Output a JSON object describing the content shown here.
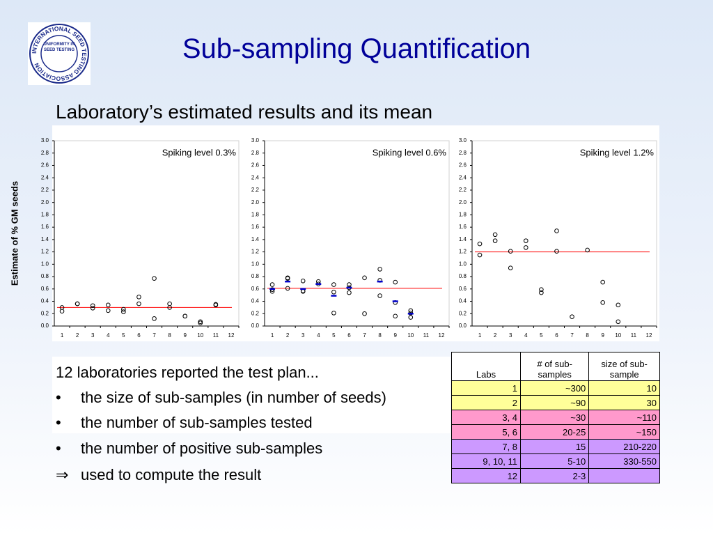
{
  "slide": {
    "title": "Sub-sampling Quantification",
    "subtitle": "Laboratory’s estimated results and its mean",
    "logo": {
      "ring": "INTERNATIONAL SEED TESTING ASSOCIATION",
      "center": "UNIFORMITY IN SEED TESTING"
    },
    "y_axis_label": "Estimate of % GM seeds",
    "intro": "12 laboratories reported the test plan...",
    "items": [
      {
        "marker": "•",
        "text": "the size of sub-samples (in number of seeds)"
      },
      {
        "marker": "•",
        "text": "the number of sub-samples tested"
      },
      {
        "marker": "•",
        "text": "the number of positive sub-samples"
      },
      {
        "marker": "⇒",
        "text": "used to compute the result"
      }
    ],
    "table": {
      "header": [
        "Labs",
        "# of sub-samples",
        "size of sub-sample"
      ],
      "rows": [
        {
          "color": "#ffff99",
          "cells": [
            "1",
            "~300",
            "10"
          ]
        },
        {
          "color": "#ffff99",
          "cells": [
            "2",
            "~90",
            "30"
          ]
        },
        {
          "color": "#ff99cc",
          "cells": [
            "3, 4",
            "~30",
            "~110"
          ]
        },
        {
          "color": "#ff99cc",
          "cells": [
            "5, 6",
            "20-25",
            "~150"
          ]
        },
        {
          "color": "#cc99ff",
          "cells": [
            "7, 8",
            "15",
            "210-220"
          ]
        },
        {
          "color": "#cc99ff",
          "cells": [
            "9, 10, 11",
            "5-10",
            "330-550"
          ]
        },
        {
          "color": "#cc99ff",
          "cells": [
            "12",
            "2-3",
            null
          ]
        }
      ]
    }
  },
  "chart_data": [
    {
      "type": "scatter",
      "annotation": "Spiking level 0.3%",
      "xlim": [
        0.5,
        12.5
      ],
      "xticks": [
        1,
        2,
        3,
        4,
        5,
        6,
        7,
        8,
        9,
        10,
        11,
        12
      ],
      "ylim": [
        0,
        3
      ],
      "yticks": [
        {
          "value": 0,
          "label": "0.0"
        },
        0.2,
        0.4,
        0.6,
        0.8,
        {
          "value": 1,
          "label": "1.0"
        },
        1.2,
        1.4,
        1.6,
        1.8,
        {
          "value": 2,
          "label": "2.0"
        },
        2.2,
        2.4,
        2.6,
        2.8,
        {
          "value": 3,
          "label": "3.0"
        }
      ],
      "series": [
        {
          "color": "#000000",
          "marker": "circle",
          "x": [
            1,
            1,
            2,
            2,
            3,
            3,
            4,
            4,
            5,
            5,
            6,
            6,
            7,
            7,
            8,
            8,
            9,
            9,
            10,
            10,
            11,
            11
          ],
          "values": [
            0.3,
            0.24,
            0.36,
            0.36,
            0.33,
            0.29,
            0.34,
            0.25,
            0.27,
            0.23,
            0.47,
            0.36,
            0.77,
            0.12,
            0.36,
            0.3,
            0.16,
            0.16,
            0.07,
            0.05,
            0.34,
            0.35
          ]
        }
      ],
      "mean": {
        "value": 0.3,
        "color": "#ff0000"
      }
    },
    {
      "type": "scatter",
      "annotation": "Spiking level 0.6%",
      "xlim": [
        0.5,
        12.5
      ],
      "xticks": [
        1,
        2,
        3,
        4,
        5,
        6,
        7,
        8,
        9,
        10,
        11,
        12
      ],
      "ylim": [
        0,
        3
      ],
      "yticks": [
        {
          "value": 0,
          "label": "0.0"
        },
        0.2,
        0.4,
        0.6,
        0.8,
        {
          "value": 1,
          "label": "1.0"
        },
        1.2,
        1.4,
        1.6,
        1.8,
        {
          "value": 2,
          "label": "2.0"
        },
        2.2,
        2.4,
        2.6,
        2.8,
        {
          "value": 3,
          "label": "3.0"
        }
      ],
      "series": [
        {
          "color": "#000000",
          "marker": "circle",
          "x": [
            1,
            1,
            1,
            2,
            2,
            2,
            3,
            3,
            3,
            4,
            4,
            5,
            5,
            5,
            6,
            6,
            6,
            7,
            7,
            8,
            8,
            8,
            9,
            9,
            9,
            10,
            10,
            10
          ],
          "values": [
            0.67,
            0.59,
            0.56,
            0.78,
            0.77,
            0.61,
            0.73,
            0.57,
            0.56,
            0.72,
            0.68,
            0.67,
            0.55,
            0.21,
            0.67,
            0.62,
            0.54,
            0.78,
            0.2,
            0.92,
            0.74,
            0.49,
            0.71,
            0.38,
            0.16,
            0.25,
            0.21,
            0.14
          ]
        },
        {
          "color": "#0000cc",
          "marker": "dash",
          "x": [
            1,
            2,
            3,
            4,
            5,
            6,
            8,
            9,
            10
          ],
          "values": [
            0.6,
            0.72,
            0.6,
            0.68,
            0.49,
            0.62,
            0.72,
            0.4,
            0.2
          ]
        }
      ],
      "mean": {
        "value": 0.61,
        "color": "#ff0000"
      }
    },
    {
      "type": "scatter",
      "annotation": "Spiking level 1.2%",
      "xlim": [
        0.5,
        12.5
      ],
      "xticks": [
        1,
        2,
        3,
        4,
        5,
        6,
        7,
        8,
        9,
        10,
        11,
        12
      ],
      "ylim": [
        0,
        3
      ],
      "yticks": [
        {
          "value": 0,
          "label": "0.0"
        },
        0.2,
        0.4,
        0.6,
        0.8,
        {
          "value": 1,
          "label": "1.0"
        },
        1.2,
        1.4,
        1.6,
        1.8,
        {
          "value": 2,
          "label": "2.0"
        },
        2.2,
        2.4,
        2.6,
        2.8,
        {
          "value": 3,
          "label": "3.0"
        }
      ],
      "series": [
        {
          "color": "#000000",
          "marker": "circle",
          "x": [
            1,
            1,
            2,
            2,
            3,
            3,
            4,
            4,
            5,
            5,
            6,
            6,
            7,
            8,
            9,
            9,
            10,
            10
          ],
          "values": [
            1.33,
            1.15,
            1.48,
            1.38,
            1.21,
            0.94,
            1.38,
            1.27,
            0.59,
            0.54,
            1.54,
            1.21,
            0.15,
            1.23,
            0.71,
            0.38,
            0.34,
            0.07
          ]
        }
      ],
      "mean": {
        "value": 1.2,
        "color": "#ff0000"
      }
    }
  ]
}
